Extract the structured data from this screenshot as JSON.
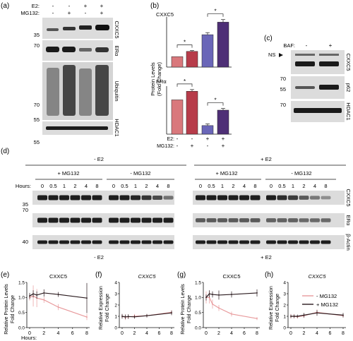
{
  "panels": {
    "a": "(a)",
    "b": "(b)",
    "c": "(c)",
    "d": "(d)",
    "e": "(e)",
    "f": "(f)",
    "g": "(g)",
    "h": "(h)"
  },
  "colors": {
    "band": "#1c1c1c",
    "blot_bg": "#dcdcdc",
    "ctrl": "#d9787c",
    "e2": "#b73c4a",
    "mg": "#6a66b8",
    "e2mg": "#4e2f76",
    "minus_mg": "#e89a9c",
    "plus_mg": "#2a1a1e"
  },
  "panel_a": {
    "row_e2": "E2:",
    "row_mg": "MG132:",
    "e2_signs": [
      "-",
      "-",
      "+",
      "+"
    ],
    "mg_signs": [
      "-",
      "+",
      "-",
      "+"
    ],
    "blots": [
      {
        "label": "CXXC5",
        "markers": [
          "35"
        ]
      },
      {
        "label": "ERα",
        "markers": [
          "70"
        ]
      },
      {
        "label": "Ubiquitin",
        "markers": [
          "70",
          "55"
        ]
      },
      {
        "label": "HDAC1",
        "markers": [
          "55"
        ]
      }
    ]
  },
  "panel_b": {
    "ylabel_1": "Protein Levels",
    "ylabel_2": "(Fold Change)",
    "row_e2": "E2:",
    "row_mg": "MG132:",
    "e2_signs": [
      "-",
      "-",
      "+",
      "+"
    ],
    "mg_signs": [
      "-",
      "+",
      "-",
      "+"
    ],
    "sig": "*",
    "chart_data": [
      {
        "type": "bar",
        "title": "CXXC5",
        "categories": [
          "E2- MG132-",
          "E2- MG132+",
          "E2+ MG132-",
          "E2+ MG132+"
        ],
        "values": [
          1.0,
          1.5,
          3.1,
          4.3
        ],
        "errors": [
          0,
          0.08,
          0.2,
          0.25
        ],
        "ylim": [
          0,
          4.8
        ],
        "significance": [
          [
            "1",
            "2"
          ],
          [
            "3",
            "4"
          ]
        ]
      },
      {
        "type": "bar",
        "title": "ERα",
        "categories": [
          "E2- MG132-",
          "E2- MG132+",
          "E2+ MG132-",
          "E2+ MG132+"
        ],
        "values": [
          1.0,
          1.25,
          0.25,
          0.7
        ],
        "errors": [
          0,
          0.05,
          0.05,
          0.05
        ],
        "ylim": [
          0,
          1.4
        ],
        "significance": [
          [
            "1",
            "2"
          ],
          [
            "3",
            "4"
          ]
        ]
      }
    ]
  },
  "panel_c": {
    "row_baf": "BAF:",
    "baf_signs": [
      "-",
      "+"
    ],
    "ns": "NS",
    "blots": [
      {
        "label": "CXXC5",
        "markers": []
      },
      {
        "label": "p62",
        "markers": [
          "70",
          "55"
        ]
      },
      {
        "label": "HDAC1",
        "markers": [
          "70"
        ]
      }
    ]
  },
  "panel_d": {
    "groups": [
      {
        "title": "- E2"
      },
      {
        "title": "+ E2"
      }
    ],
    "sub_plus": "+ MG132",
    "sub_minus": "- MG132",
    "hours_label": "Hours:",
    "hours": [
      "0",
      "0.5",
      "1",
      "2",
      "4",
      "8"
    ],
    "blots": [
      {
        "label": "CXXC5",
        "marker": "35"
      },
      {
        "label": "ERα",
        "marker": "70"
      },
      {
        "label": "β-Actin",
        "marker": "40"
      }
    ]
  },
  "bottom_titles": {
    "minus_e2": "- E2",
    "plus_e2": "+ E2"
  },
  "line_labels": {
    "protein_1": "Relative Protein Levels",
    "protein_2": "Fold Change",
    "expr_1": "Relative Expression",
    "expr_2": "Fold Change",
    "hours_label": "Hours:"
  },
  "legend": {
    "minus": "- MG132",
    "plus": "+ MG132"
  },
  "line_charts": [
    {
      "panel": "e",
      "title": "CXXC5",
      "italic": false,
      "type": "line",
      "x": [
        0,
        0.5,
        1,
        2,
        4,
        8
      ],
      "xticks": [
        "0",
        "2",
        "4",
        "6",
        "8"
      ],
      "ylim": [
        0,
        1.5
      ],
      "yticks": [
        "0.0",
        "0.5",
        "1.0",
        "1.5"
      ],
      "series": [
        {
          "name": "- MG132",
          "values": [
            1.0,
            1.05,
            0.98,
            0.92,
            0.68,
            0.35
          ],
          "errors": [
            0.1,
            0.35,
            0.3,
            0.1,
            0.1,
            0.1
          ]
        },
        {
          "name": "+ MG132",
          "values": [
            1.05,
            1.12,
            1.08,
            1.15,
            1.1,
            0.98
          ],
          "errors": [
            0.1,
            0.12,
            0.12,
            0.12,
            0.08,
            0.5
          ]
        }
      ]
    },
    {
      "panel": "f",
      "title": "CXXC5",
      "italic": true,
      "type": "line",
      "x": [
        0,
        0.5,
        1,
        2,
        4,
        8
      ],
      "xticks": [
        "0",
        "2",
        "4",
        "6",
        "8"
      ],
      "ylim": [
        0,
        4
      ],
      "yticks": [
        "0",
        "1",
        "2",
        "3",
        "4"
      ],
      "series": [
        {
          "name": "- MG132",
          "values": [
            1.0,
            0.92,
            0.95,
            1.0,
            1.05,
            1.35
          ],
          "errors": [
            0.2,
            0.25,
            0.2,
            0.2,
            0.15,
            0.2
          ]
        },
        {
          "name": "+ MG132",
          "values": [
            1.0,
            0.95,
            0.98,
            0.95,
            1.05,
            1.3
          ],
          "errors": [
            0.2,
            0.2,
            0.2,
            0.15,
            0.15,
            0.2
          ]
        }
      ]
    },
    {
      "panel": "g",
      "title": "CXXC5",
      "italic": false,
      "type": "line",
      "x": [
        0,
        0.5,
        1,
        2,
        4,
        8
      ],
      "xticks": [
        "0",
        "2",
        "4",
        "6",
        "8"
      ],
      "ylim": [
        0,
        1.5
      ],
      "yticks": [
        "0.0",
        "0.5",
        "1.0",
        "1.5"
      ],
      "series": [
        {
          "name": "- MG132",
          "values": [
            1.0,
            1.0,
            0.78,
            0.65,
            0.45,
            0.3
          ],
          "errors": [
            0.2,
            0.2,
            0.15,
            0.1,
            0.08,
            0.05
          ]
        },
        {
          "name": "+ MG132",
          "values": [
            1.0,
            1.12,
            1.1,
            1.08,
            1.1,
            1.15
          ],
          "errors": [
            0.1,
            0.12,
            0.1,
            0.15,
            0.1,
            0.12
          ]
        }
      ]
    },
    {
      "panel": "h",
      "title": "CXXC5",
      "italic": true,
      "type": "line",
      "x": [
        0,
        0.5,
        1,
        2,
        4,
        8
      ],
      "xticks": [
        "0",
        "2",
        "4",
        "6",
        "8"
      ],
      "ylim": [
        0,
        4
      ],
      "yticks": [
        "0",
        "1",
        "2",
        "3",
        "4"
      ],
      "series": [
        {
          "name": "- MG132",
          "values": [
            1.0,
            1.0,
            0.95,
            1.05,
            1.35,
            1.05
          ],
          "errors": [
            0.2,
            0.2,
            0.15,
            0.2,
            0.25,
            0.15
          ]
        },
        {
          "name": "+ MG132",
          "values": [
            1.0,
            1.0,
            1.0,
            1.1,
            1.3,
            1.1
          ],
          "errors": [
            0.15,
            0.15,
            0.15,
            0.2,
            0.25,
            0.2
          ]
        }
      ]
    }
  ]
}
